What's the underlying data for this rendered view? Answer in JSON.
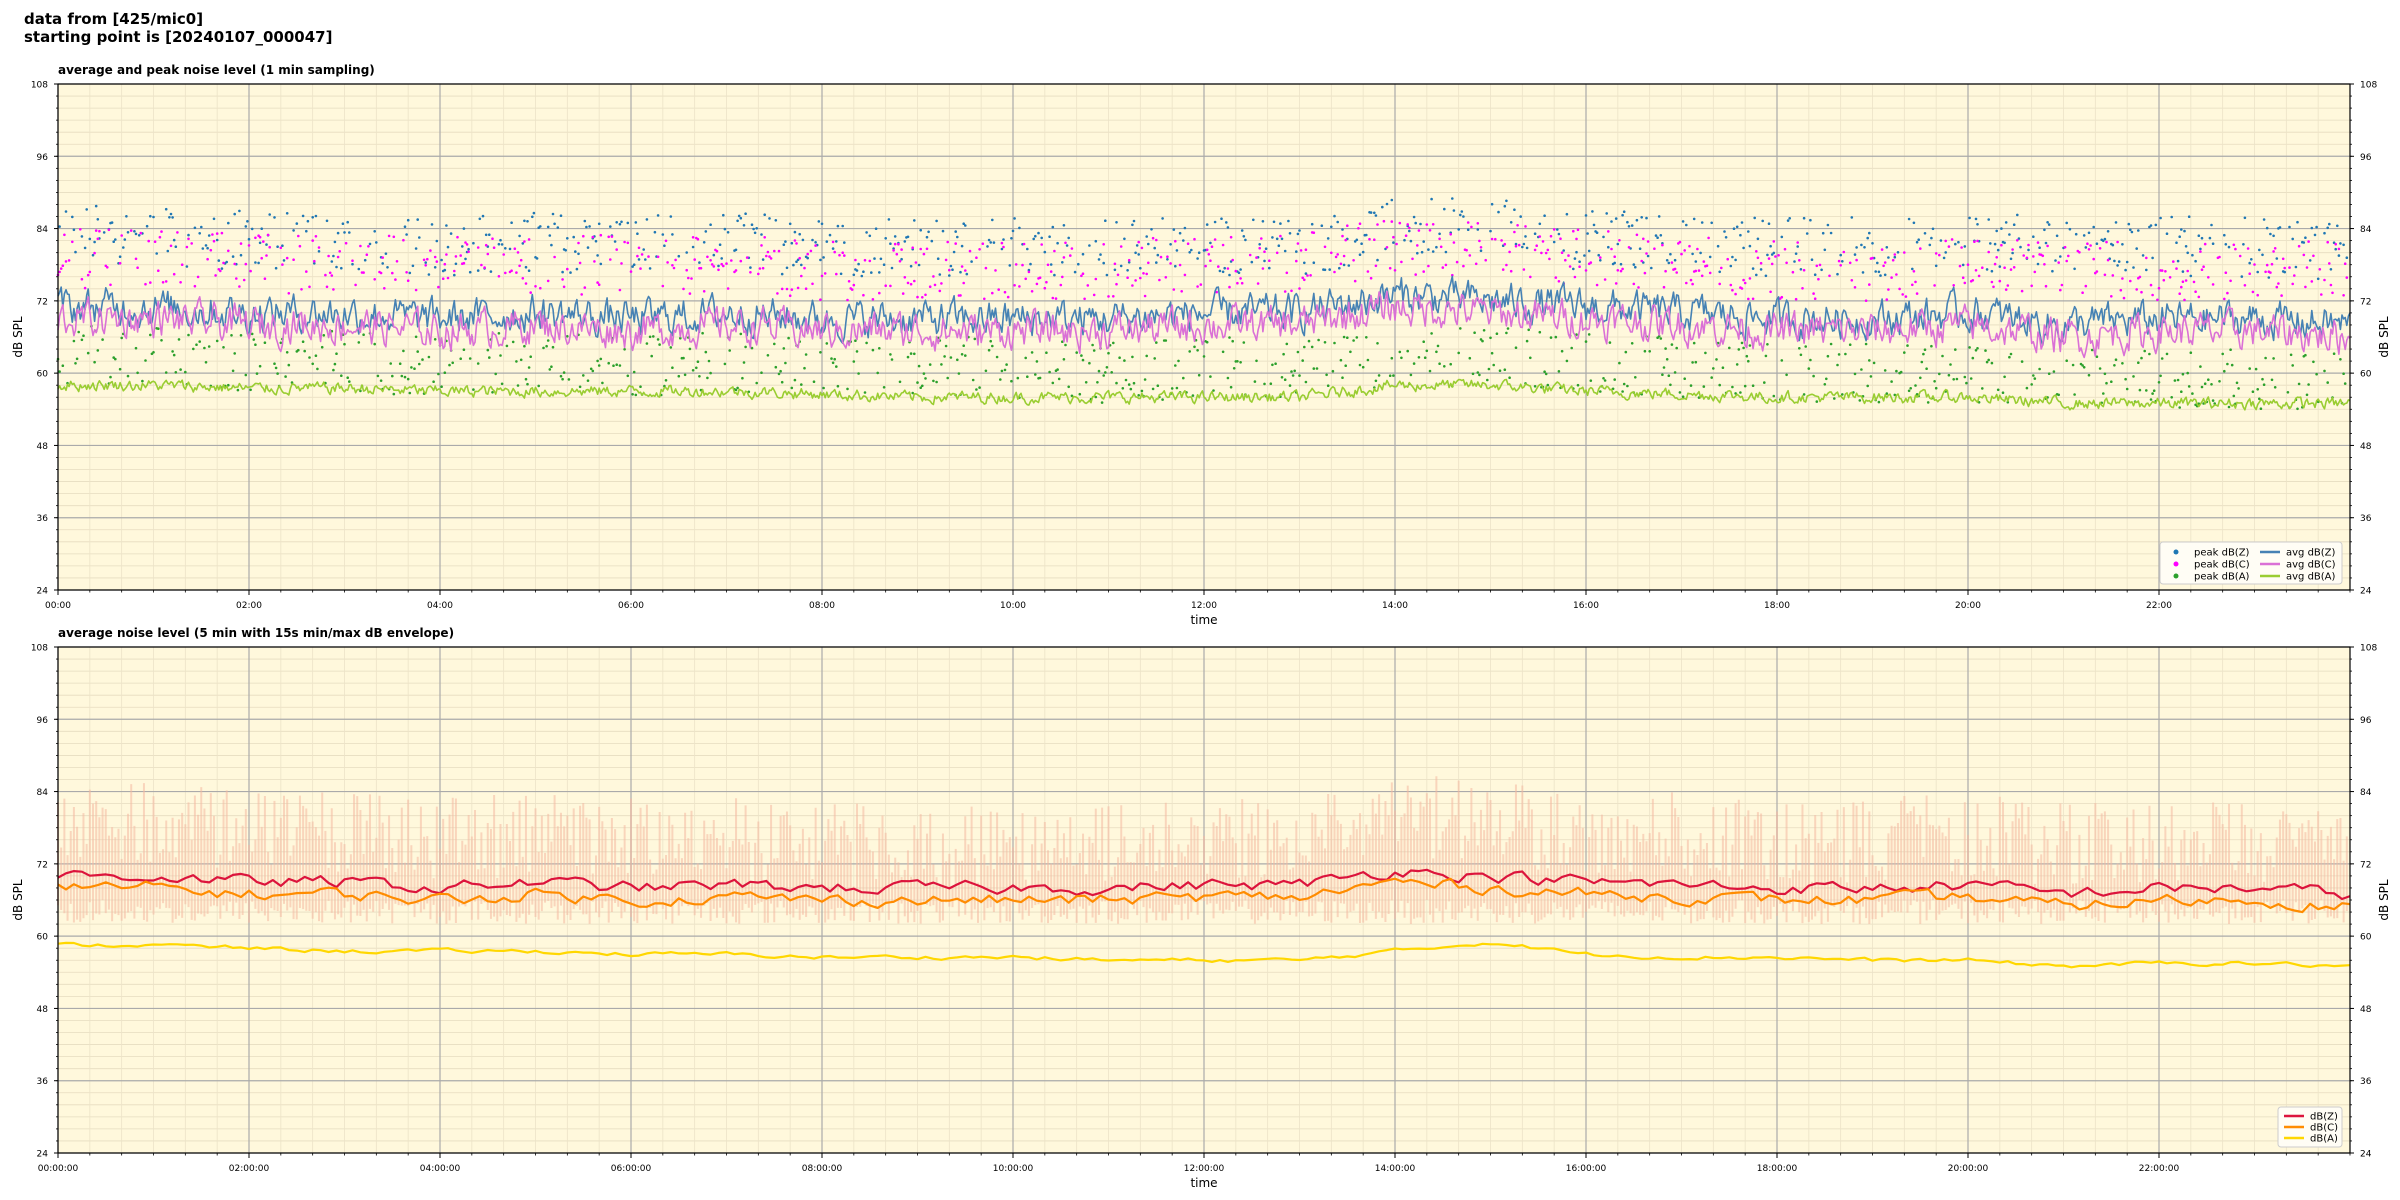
{
  "header": {
    "line1": "data from [425/mic0]",
    "line2": "starting point is [20240107_000047]"
  },
  "chart_data": [
    {
      "type": "line",
      "title": "average and peak noise level (1 min sampling)",
      "xlabel": "time",
      "ylabel": "dB SPL",
      "ylim": [
        24,
        108
      ],
      "yticks": [
        24,
        36,
        48,
        60,
        72,
        84,
        96,
        108
      ],
      "xlim_hours": [
        0,
        24
      ],
      "xticks": [
        "00:00",
        "02:00",
        "04:00",
        "06:00",
        "08:00",
        "10:00",
        "12:00",
        "14:00",
        "16:00",
        "18:00",
        "20:00",
        "22:00"
      ],
      "grid": true,
      "legend_position": "bottom-right",
      "x_hours": [
        0,
        1,
        2,
        3,
        4,
        5,
        6,
        7,
        8,
        9,
        10,
        11,
        12,
        13,
        14,
        15,
        16,
        17,
        18,
        19,
        20,
        21,
        22,
        23,
        24
      ],
      "series": [
        {
          "name": "peak dB(Z)",
          "kind": "scatter",
          "color": "#1f77b4",
          "values": [
            83,
            83,
            82,
            82,
            81,
            82,
            81,
            82,
            81,
            81,
            81,
            81,
            81,
            81,
            84,
            84,
            82,
            82,
            81,
            81,
            82,
            81,
            81,
            81,
            80
          ]
        },
        {
          "name": "peak dB(C)",
          "kind": "scatter",
          "color": "#ff00ff",
          "values": [
            79,
            79,
            78,
            78,
            78,
            78,
            78,
            78,
            77,
            77,
            77,
            77,
            78,
            78,
            81,
            80,
            79,
            78,
            77,
            77,
            78,
            77,
            77,
            77,
            77
          ]
        },
        {
          "name": "peak dB(A)",
          "kind": "scatter",
          "color": "#2ca02c",
          "values": [
            63,
            63,
            62,
            62,
            61,
            62,
            61,
            62,
            61,
            61,
            61,
            60,
            61,
            61,
            62,
            63,
            62,
            61,
            60,
            60,
            60,
            59,
            59,
            59,
            59
          ]
        },
        {
          "name": "avg dB(Z)",
          "kind": "line",
          "color": "#4682b4",
          "values": [
            71,
            71,
            70,
            70,
            69,
            70,
            69,
            70,
            69,
            69,
            69,
            69,
            70,
            70,
            73,
            72,
            71,
            70,
            69,
            69,
            70,
            68,
            69,
            69,
            68
          ]
        },
        {
          "name": "avg dB(C)",
          "kind": "line",
          "color": "#da70d6",
          "values": [
            69,
            69,
            68,
            68,
            67,
            68,
            67,
            68,
            67,
            67,
            67,
            67,
            68,
            68,
            71,
            70,
            69,
            68,
            67,
            67,
            68,
            66,
            67,
            67,
            66
          ]
        },
        {
          "name": "avg dB(A)",
          "kind": "line",
          "color": "#9acd32",
          "values": [
            58,
            58,
            57.5,
            57.5,
            57,
            57,
            57,
            57,
            56.5,
            56,
            56,
            56,
            56,
            56,
            58,
            58,
            57,
            56.5,
            56,
            56,
            56,
            55,
            55,
            55,
            55
          ]
        }
      ]
    },
    {
      "type": "line",
      "title": "average noise level (5 min with 15s min/max dB envelope)",
      "xlabel": "time",
      "ylabel": "dB SPL",
      "ylim": [
        24,
        108
      ],
      "yticks": [
        24,
        36,
        48,
        60,
        72,
        84,
        96,
        108
      ],
      "xlim_hours": [
        0,
        24
      ],
      "xticks": [
        "00:00:00",
        "02:00:00",
        "04:00:00",
        "06:00:00",
        "08:00:00",
        "10:00:00",
        "12:00:00",
        "14:00:00",
        "16:00:00",
        "18:00:00",
        "20:00:00",
        "22:00:00"
      ],
      "grid": true,
      "legend_position": "bottom-right",
      "x_hours": [
        0,
        1,
        2,
        3,
        4,
        5,
        6,
        7,
        8,
        9,
        10,
        11,
        12,
        13,
        14,
        15,
        16,
        17,
        18,
        19,
        20,
        21,
        22,
        23,
        24
      ],
      "envelope": {
        "color": "#f4b8a0",
        "low": 62,
        "high_values": [
          86,
          86,
          84,
          84,
          83,
          84,
          83,
          83,
          82,
          82,
          82,
          82,
          83,
          84,
          87,
          86,
          84,
          84,
          82,
          83,
          84,
          82,
          83,
          83,
          82
        ]
      },
      "series": [
        {
          "name": "dB(Z)",
          "kind": "line",
          "color": "#dc143c",
          "values": [
            70,
            70,
            69,
            69,
            68,
            69,
            68,
            68.5,
            68,
            68,
            68,
            68,
            68.5,
            68.5,
            71,
            70,
            69,
            68.5,
            68,
            68,
            68.5,
            67,
            68,
            68,
            67
          ]
        },
        {
          "name": "dB(C)",
          "kind": "line",
          "color": "#ff8c00",
          "values": [
            68,
            68,
            67,
            67,
            66,
            67,
            66,
            66.5,
            66,
            66,
            66,
            66,
            66.5,
            66.5,
            69,
            68,
            67,
            66.5,
            66,
            66,
            66.5,
            65,
            66,
            66,
            65
          ]
        },
        {
          "name": "dB(A)",
          "kind": "line",
          "color": "#ffd700",
          "values": [
            58.5,
            58.5,
            58,
            57.5,
            57.5,
            57.5,
            57,
            57,
            56.5,
            56.5,
            56.5,
            56,
            56,
            56,
            57.5,
            59,
            57,
            56.5,
            56.5,
            56,
            56,
            55,
            55.5,
            55.5,
            55
          ]
        }
      ]
    }
  ]
}
